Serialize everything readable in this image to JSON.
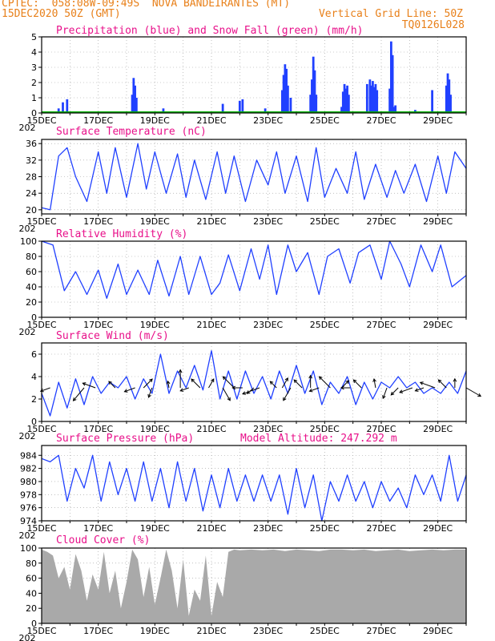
{
  "header": {
    "line1_left": "CPTEC:  058:08W-09:49S  NOVA BANDEIRANTES (MT)",
    "line2_left": "15DEC2020 50Z (GMT)",
    "line2_right": "Vertical Grid Line: 50Z",
    "line3_right": "TQ0126L028"
  },
  "x_ticks": [
    "15DEC",
    "17DEC",
    "19DEC",
    "21DEC",
    "23DEC",
    "25DEC",
    "27DEC",
    "29DEC"
  ],
  "x_year_stub": "202",
  "colors": {
    "series": "#2040ff",
    "snow": "#00b000",
    "cloud": "#a9a9a9",
    "arrow": "#000000",
    "title": "#e8108a",
    "header": "#e8801a"
  },
  "chart_data": [
    {
      "id": "precip",
      "type": "bar",
      "title": "Precipitation (blue) and Snow Fall (green) (mm/h)",
      "ylim": [
        0,
        5
      ],
      "yticks": [
        "0",
        "1",
        "2",
        "3",
        "4",
        "5"
      ],
      "x_days": [
        0.6,
        0.75,
        0.9,
        1.3,
        1.4,
        1.5,
        3.2,
        3.25,
        3.3,
        3.35,
        4.3,
        5.35,
        6.4,
        6.6,
        7.0,
        7.1,
        7.9,
        8.5,
        8.55,
        8.6,
        8.65,
        8.7,
        8.8,
        9.5,
        9.55,
        9.6,
        9.65,
        9.7,
        10.6,
        10.65,
        10.7,
        10.75,
        10.8,
        10.85,
        11.5,
        11.6,
        11.65,
        11.7,
        11.75,
        11.8,
        11.85,
        12.3,
        12.35,
        12.4,
        12.45,
        12.5,
        13.2,
        13.8,
        14.3,
        14.35,
        14.4,
        14.45
      ],
      "values": [
        0.3,
        0.7,
        0.9,
        0.1,
        0.1,
        0.1,
        1.2,
        2.3,
        1.8,
        1.0,
        0.3,
        0.1,
        0.6,
        0.1,
        0.8,
        0.9,
        0.3,
        1.5,
        2.5,
        3.2,
        2.9,
        1.8,
        1.0,
        1.2,
        2.2,
        3.7,
        2.8,
        1.2,
        0.4,
        1.4,
        1.9,
        1.6,
        1.8,
        1.2,
        1.9,
        2.2,
        1.8,
        2.1,
        1.7,
        1.9,
        1.5,
        1.6,
        4.7,
        3.8,
        0.4,
        0.5,
        0.2,
        1.5,
        1.8,
        2.6,
        2.2,
        1.2
      ],
      "snow_values": []
    },
    {
      "id": "temp",
      "type": "line",
      "title": "Surface Temperature (nC)",
      "ylim": [
        19,
        37
      ],
      "yticks": [
        "20",
        "24",
        "28",
        "32",
        "36"
      ],
      "x_days": [
        0,
        0.3,
        0.6,
        0.9,
        1.2,
        1.6,
        2.0,
        2.3,
        2.6,
        3.0,
        3.4,
        3.7,
        4.0,
        4.4,
        4.8,
        5.1,
        5.4,
        5.8,
        6.2,
        6.5,
        6.8,
        7.2,
        7.6,
        8.0,
        8.3,
        8.6,
        9.0,
        9.4,
        9.7,
        10.0,
        10.4,
        10.8,
        11.1,
        11.4,
        11.8,
        12.2,
        12.5,
        12.8,
        13.2,
        13.6,
        14.0,
        14.3,
        14.6,
        15.0
      ],
      "values": [
        20.5,
        20,
        33,
        35,
        28,
        22,
        34,
        24,
        35,
        23,
        36,
        25,
        34,
        24,
        33.5,
        23,
        32,
        22.5,
        34,
        24,
        33,
        22,
        32,
        26,
        34,
        24,
        33,
        22,
        35,
        23,
        30,
        24,
        34,
        22.5,
        31,
        23,
        29.5,
        24,
        31,
        22,
        33,
        24,
        34,
        30
      ]
    },
    {
      "id": "rh",
      "type": "line",
      "title": "Relative Humidity (%)",
      "ylim": [
        0,
        100
      ],
      "yticks": [
        "0",
        "20",
        "40",
        "60",
        "80",
        "100"
      ],
      "x_days": [
        0,
        0.4,
        0.8,
        1.2,
        1.6,
        2.0,
        2.3,
        2.7,
        3.0,
        3.4,
        3.8,
        4.1,
        4.5,
        4.9,
        5.2,
        5.6,
        6.0,
        6.3,
        6.6,
        7.0,
        7.4,
        7.7,
        8.0,
        8.3,
        8.7,
        9.0,
        9.4,
        9.8,
        10.1,
        10.5,
        10.9,
        11.2,
        11.6,
        12.0,
        12.3,
        12.7,
        13.0,
        13.4,
        13.8,
        14.1,
        14.5,
        15.0
      ],
      "values": [
        100,
        95,
        35,
        60,
        30,
        62,
        25,
        70,
        30,
        62,
        30,
        75,
        28,
        80,
        30,
        80,
        30,
        45,
        82,
        35,
        90,
        50,
        95,
        30,
        95,
        60,
        85,
        30,
        80,
        90,
        45,
        85,
        95,
        50,
        100,
        70,
        40,
        95,
        60,
        95,
        40,
        55
      ]
    },
    {
      "id": "wind",
      "type": "line",
      "title": "Surface Wind (m/s)",
      "ylim": [
        0,
        7
      ],
      "yticks": [
        "0",
        "2",
        "4",
        "6"
      ],
      "x_days": [
        0,
        0.3,
        0.6,
        0.9,
        1.2,
        1.5,
        1.8,
        2.1,
        2.4,
        2.7,
        3.0,
        3.3,
        3.6,
        3.9,
        4.2,
        4.5,
        4.8,
        5.1,
        5.4,
        5.7,
        6.0,
        6.3,
        6.6,
        6.9,
        7.2,
        7.5,
        7.8,
        8.1,
        8.4,
        8.7,
        9.0,
        9.3,
        9.6,
        9.9,
        10.2,
        10.5,
        10.8,
        11.1,
        11.4,
        11.7,
        12.0,
        12.3,
        12.6,
        12.9,
        13.2,
        13.5,
        13.8,
        14.1,
        14.4,
        14.7,
        15.0
      ],
      "values": [
        2.5,
        0.5,
        3.5,
        1.2,
        3.8,
        1.5,
        4.0,
        2.5,
        3.5,
        3.0,
        4.0,
        2.0,
        3.8,
        2.5,
        6.0,
        2.5,
        4.5,
        3.0,
        5.0,
        2.8,
        6.3,
        2.0,
        4.5,
        2.0,
        4.5,
        2.5,
        4.0,
        2.0,
        4.5,
        2.5,
        5.0,
        2.5,
        4.5,
        1.5,
        3.5,
        2.5,
        4.0,
        1.5,
        3.5,
        2.0,
        3.5,
        3.0,
        4.0,
        3.0,
        3.5,
        2.5,
        3.0,
        2.5,
        3.5,
        2.5,
        4.5
      ]
    },
    {
      "id": "pres",
      "type": "line",
      "title": "Surface Pressure (hPa)",
      "subtitle": "Model Altitude: 247.292 m",
      "ylim": [
        974,
        985.5
      ],
      "yticks": [
        "974",
        "976",
        "978",
        "980",
        "982",
        "984"
      ],
      "x_days": [
        0,
        0.3,
        0.6,
        0.9,
        1.2,
        1.5,
        1.8,
        2.1,
        2.4,
        2.7,
        3.0,
        3.3,
        3.6,
        3.9,
        4.2,
        4.5,
        4.8,
        5.1,
        5.4,
        5.7,
        6.0,
        6.3,
        6.6,
        6.9,
        7.2,
        7.5,
        7.8,
        8.1,
        8.4,
        8.7,
        9.0,
        9.3,
        9.6,
        9.9,
        10.2,
        10.5,
        10.8,
        11.1,
        11.4,
        11.7,
        12.0,
        12.3,
        12.6,
        12.9,
        13.2,
        13.5,
        13.8,
        14.1,
        14.4,
        14.7,
        15.0
      ],
      "values": [
        983.5,
        983,
        984,
        977,
        982,
        979,
        984,
        977,
        983,
        978,
        982,
        977,
        983,
        977,
        982,
        976,
        983,
        977,
        982,
        975.5,
        981,
        976,
        982,
        977,
        981,
        977,
        981,
        977,
        981,
        975,
        982,
        976,
        981,
        974,
        980,
        977,
        981,
        977,
        980,
        976,
        980,
        977,
        979,
        976,
        981,
        978,
        981,
        977,
        984,
        977,
        981
      ]
    },
    {
      "id": "cloud",
      "type": "area",
      "title": "Cloud Cover (%)",
      "ylim": [
        0,
        100
      ],
      "yticks": [
        "0",
        "20",
        "40",
        "60",
        "80",
        "100"
      ],
      "x_days": [
        0,
        0.2,
        0.4,
        0.6,
        0.8,
        1.0,
        1.2,
        1.4,
        1.6,
        1.8,
        2.0,
        2.2,
        2.4,
        2.6,
        2.8,
        3.0,
        3.2,
        3.4,
        3.6,
        3.8,
        4.0,
        4.2,
        4.4,
        4.6,
        4.8,
        5.0,
        5.2,
        5.4,
        5.6,
        5.8,
        6.0,
        6.2,
        6.4,
        6.6,
        6.8,
        7.0,
        7.4,
        7.8,
        8.2,
        8.6,
        9.0,
        9.4,
        9.8,
        10.2,
        10.6,
        11.0,
        11.4,
        11.8,
        12.2,
        12.6,
        13.0,
        13.4,
        13.8,
        14.2,
        14.6,
        15.0
      ],
      "values": [
        98,
        95,
        90,
        60,
        75,
        45,
        92,
        70,
        30,
        65,
        45,
        95,
        40,
        70,
        20,
        55,
        98,
        85,
        35,
        75,
        25,
        60,
        98,
        70,
        20,
        85,
        10,
        45,
        30,
        90,
        10,
        55,
        35,
        95,
        98,
        97,
        98,
        97,
        98,
        96,
        98,
        97,
        96,
        98,
        98,
        97,
        98,
        96,
        97,
        98,
        96,
        97,
        98,
        97,
        98,
        98
      ]
    }
  ],
  "wind_arrows": {
    "x_days": [
      0.3,
      1.5,
      1.9,
      2.6,
      3.3,
      3.6,
      3.9,
      4.5,
      4.9,
      5.2,
      5.6,
      5.9,
      6.4,
      6.8,
      7.1,
      7.5,
      7.7,
      8.3,
      8.5,
      8.8,
      9.2,
      9.5,
      9.8,
      10.2,
      10.6,
      10.9,
      11.3,
      11.8,
      12.2,
      12.6,
      13.1,
      13.5,
      13.9,
      14.3,
      14.6,
      15.0
    ],
    "dir_deg": [
      200,
      230,
      160,
      135,
      200,
      45,
      250,
      100,
      90,
      200,
      135,
      60,
      300,
      135,
      180,
      220,
      200,
      135,
      60,
      240,
      135,
      90,
      200,
      135,
      45,
      180,
      135,
      100,
      250,
      225,
      200,
      200,
      160,
      135,
      90,
      330
    ],
    "len": [
      0.9,
      1.5,
      1.2,
      0.8,
      1.0,
      1.1,
      0.9,
      0.6,
      1.6,
      0.8,
      1.1,
      0.9,
      1.3,
      1.4,
      0.9,
      0.8,
      1.6,
      0.8,
      1.0,
      1.3,
      1.0,
      1.1,
      0.9,
      1.4,
      0.9,
      0.8,
      1.0,
      0.8,
      1.0,
      0.9,
      1.2,
      0.8,
      1.4,
      1.0,
      0.8,
      1.5
    ]
  }
}
